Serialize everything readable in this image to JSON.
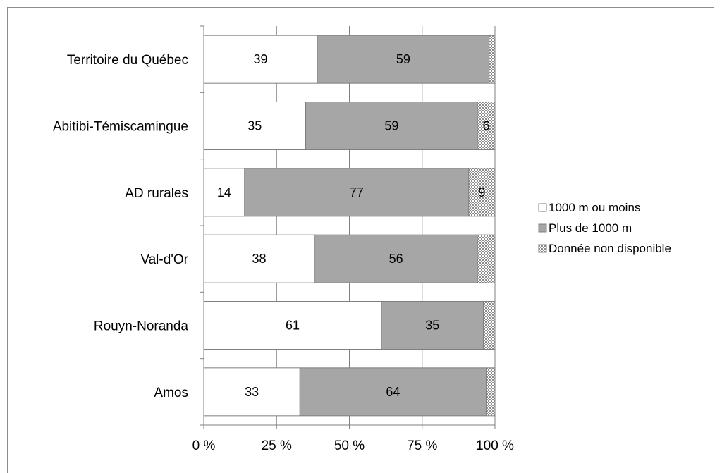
{
  "chart_data": {
    "type": "bar",
    "orientation": "horizontal",
    "stacked": "percent",
    "categories": [
      "Territoire du Québec",
      "Abitibi-Témiscamingue",
      "AD rurales",
      "Val-d'Or",
      "Rouyn-Noranda",
      "Amos"
    ],
    "series": [
      {
        "name": "1000 m ou moins",
        "values": [
          39,
          35,
          14,
          38,
          61,
          33
        ],
        "labels": [
          "39",
          "35",
          "14",
          "38",
          "61",
          "33"
        ],
        "color": "#ffffff"
      },
      {
        "name": "Plus de 1000 m",
        "values": [
          59,
          59,
          77,
          56,
          35,
          64
        ],
        "labels": [
          "59",
          "59",
          "77",
          "56",
          "35",
          "64"
        ],
        "color": "#a6a6a6"
      },
      {
        "name": "Donnée non disponible",
        "values": [
          2,
          6,
          9,
          6,
          4,
          3
        ],
        "labels": [
          "",
          "6",
          "9",
          "",
          "",
          ""
        ],
        "color": "#d9d9d9",
        "pattern": "checker"
      }
    ],
    "xlim": [
      0,
      100
    ],
    "xticks": [
      "0 %",
      "25 %",
      "50 %",
      "75 %",
      "100 %"
    ],
    "xtick_values": [
      0,
      25,
      50,
      75,
      100
    ],
    "grid": true,
    "legend_position": "right"
  }
}
